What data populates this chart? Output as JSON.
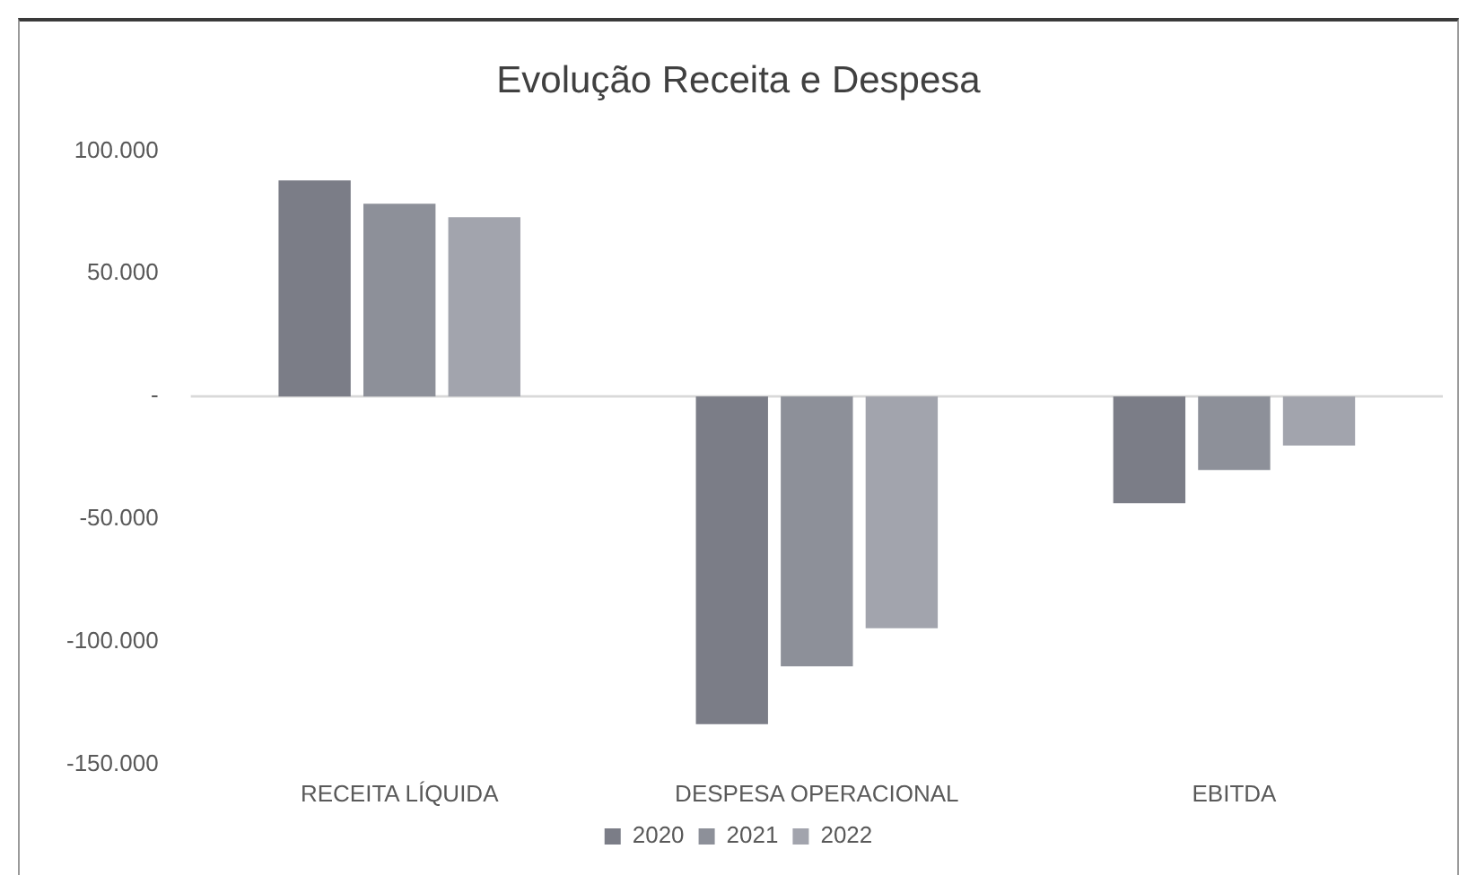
{
  "chart_data": {
    "type": "bar",
    "title": "Evolução Receita e Despesa",
    "categories": [
      "RECEITA LÍQUIDA",
      "DESPESA OPERACIONAL",
      "EBITDA"
    ],
    "series": [
      {
        "name": "2020",
        "color": "#7b7d87",
        "values": [
          88000,
          -133500,
          -43500
        ]
      },
      {
        "name": "2021",
        "color": "#8d9099",
        "values": [
          78500,
          -110000,
          -30000
        ]
      },
      {
        "name": "2022",
        "color": "#a2a4ad",
        "values": [
          73000,
          -94500,
          -20000
        ]
      }
    ],
    "ylim": [
      -150000,
      100000
    ],
    "yticks": [
      {
        "value": -150000,
        "label": "-150.000"
      },
      {
        "value": -100000,
        "label": "-100.000"
      },
      {
        "value": -50000,
        "label": "-50.000"
      },
      {
        "value": 0,
        "label": "-"
      },
      {
        "value": 50000,
        "label": "50.000"
      },
      {
        "value": 100000,
        "label": "100.000"
      }
    ],
    "ref_lines": [
      {
        "axis": "y",
        "value": 0,
        "color": "#d9d9d9"
      }
    ],
    "grid": false,
    "legend": "bottom"
  }
}
